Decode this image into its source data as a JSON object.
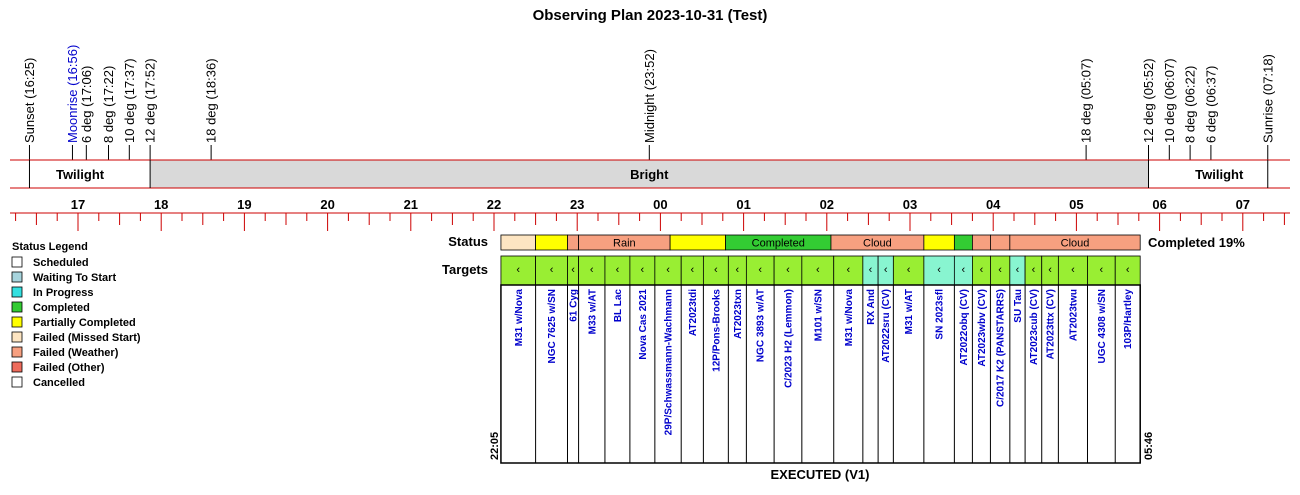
{
  "chart_data": {
    "type": "timeline",
    "title": "Observing Plan 2023-10-31 (Test)",
    "events": [
      {
        "label": "Sunset (16:25)",
        "time": "16:25",
        "color": "#000000"
      },
      {
        "label": "Moonrise (16:56)",
        "time": "16:56",
        "color": "#0000cc"
      },
      {
        "label": "6 deg (17:06)",
        "time": "17:06",
        "color": "#000000"
      },
      {
        "label": "8 deg (17:22)",
        "time": "17:22",
        "color": "#000000"
      },
      {
        "label": "10 deg (17:37)",
        "time": "17:37",
        "color": "#000000"
      },
      {
        "label": "12 deg (17:52)",
        "time": "17:52",
        "color": "#000000"
      },
      {
        "label": "18 deg (18:36)",
        "time": "18:36",
        "color": "#000000"
      },
      {
        "label": "Midnight (23:52)",
        "time": "23:52",
        "color": "#000000"
      },
      {
        "label": "18 deg (05:07)",
        "time": "05:07",
        "color": "#000000"
      },
      {
        "label": "12 deg (05:52)",
        "time": "05:52",
        "color": "#000000"
      },
      {
        "label": "10 deg (06:07)",
        "time": "06:07",
        "color": "#000000"
      },
      {
        "label": "8 deg (06:22)",
        "time": "06:22",
        "color": "#000000"
      },
      {
        "label": "6 deg (06:37)",
        "time": "06:37",
        "color": "#000000"
      },
      {
        "label": "Sunrise (07:18)",
        "time": "07:18",
        "color": "#000000"
      }
    ],
    "bands": [
      {
        "label": "Twilight",
        "start": "16:25",
        "end": "17:52",
        "fill": "#ffffff"
      },
      {
        "label": "Bright",
        "start": "17:52",
        "end": "05:52",
        "fill": "#d9d9d9"
      },
      {
        "label": "Twilight",
        "start": "05:52",
        "end": "07:18",
        "fill": "#ffffff"
      }
    ],
    "hour_labels": [
      "17",
      "18",
      "19",
      "20",
      "21",
      "22",
      "23",
      "00",
      "01",
      "02",
      "03",
      "04",
      "05",
      "06",
      "07"
    ],
    "axis_range": [
      "16:00",
      "07:30"
    ],
    "status_row_label": "Status",
    "status_segments": [
      {
        "start": "22:05",
        "end": "22:30",
        "status": "Failed (Missed Start)",
        "label": ""
      },
      {
        "start": "22:30",
        "end": "22:53",
        "status": "Partially Completed",
        "label": ""
      },
      {
        "start": "22:53",
        "end": "23:01",
        "status": "Failed (Weather)",
        "label": ""
      },
      {
        "start": "23:01",
        "end": "00:07",
        "status": "Failed (Weather)",
        "label": "Rain"
      },
      {
        "start": "00:07",
        "end": "00:47",
        "status": "Partially Completed",
        "label": ""
      },
      {
        "start": "00:47",
        "end": "02:03",
        "status": "Completed",
        "label": "Completed"
      },
      {
        "start": "02:03",
        "end": "03:10",
        "status": "Failed (Weather)",
        "label": "Cloud"
      },
      {
        "start": "03:10",
        "end": "03:32",
        "status": "Partially Completed",
        "label": ""
      },
      {
        "start": "03:32",
        "end": "03:45",
        "status": "Completed",
        "label": ""
      },
      {
        "start": "03:45",
        "end": "03:58",
        "status": "Failed (Weather)",
        "label": ""
      },
      {
        "start": "03:58",
        "end": "04:12",
        "status": "Failed (Weather)",
        "label": ""
      },
      {
        "start": "04:12",
        "end": "05:46",
        "status": "Failed (Weather)",
        "label": "Cloud"
      }
    ],
    "completion_label": "Completed 19%",
    "targets_row_label": "Targets",
    "targets": [
      {
        "name": "M31 w/Nova",
        "start": "22:05",
        "end": "22:30",
        "fill": "#99ee33"
      },
      {
        "name": "NGC 7625 w/SN",
        "start": "22:30",
        "end": "22:53",
        "fill": "#99ee33"
      },
      {
        "name": "61 Cyg",
        "start": "22:53",
        "end": "23:01",
        "fill": "#99ee33"
      },
      {
        "name": "M33 w/AT",
        "start": "23:01",
        "end": "23:20",
        "fill": "#99ee33"
      },
      {
        "name": "BL Lac",
        "start": "23:20",
        "end": "23:38",
        "fill": "#99ee33"
      },
      {
        "name": "Nova Cas 2021",
        "start": "23:38",
        "end": "23:56",
        "fill": "#99ee33"
      },
      {
        "name": "29P/Schwassmann-Wachmann",
        "start": "23:56",
        "end": "00:15",
        "fill": "#99ee33"
      },
      {
        "name": "AT2023tdi",
        "start": "00:15",
        "end": "00:31",
        "fill": "#99ee33"
      },
      {
        "name": "12P/Pons-Brooks",
        "start": "00:31",
        "end": "00:49",
        "fill": "#99ee33"
      },
      {
        "name": "AT2023txn",
        "start": "00:49",
        "end": "01:02",
        "fill": "#99ee33"
      },
      {
        "name": "NGC 3893 w/AT",
        "start": "01:02",
        "end": "01:22",
        "fill": "#99ee33"
      },
      {
        "name": "C/2023 H2 (Lemmon)",
        "start": "01:22",
        "end": "01:42",
        "fill": "#99ee33"
      },
      {
        "name": "M101 w/SN",
        "start": "01:42",
        "end": "02:05",
        "fill": "#99ee33"
      },
      {
        "name": "M31 w/Nova",
        "start": "02:05",
        "end": "02:26",
        "fill": "#99ee33"
      },
      {
        "name": "RX And",
        "start": "02:26",
        "end": "02:37",
        "fill": "#88f5d0"
      },
      {
        "name": "AT2022sru (CV)",
        "start": "02:37",
        "end": "02:48",
        "fill": "#88f5d0"
      },
      {
        "name": "M31 w/AT",
        "start": "02:48",
        "end": "03:10",
        "fill": "#99ee33"
      },
      {
        "name": "SN 2023sfl",
        "start": "03:10",
        "end": "03:32",
        "fill": "#88f5d0"
      },
      {
        "name": "AT2022obq (CV)",
        "start": "03:32",
        "end": "03:45",
        "fill": "#88f5d0"
      },
      {
        "name": "AT2023wbv (CV)",
        "start": "03:45",
        "end": "03:58",
        "fill": "#99ee33"
      },
      {
        "name": "C/2017 K2 (PANSTARRS)",
        "start": "03:58",
        "end": "04:12",
        "fill": "#99ee33"
      },
      {
        "name": "SU Tau",
        "start": "04:12",
        "end": "04:23",
        "fill": "#88f5d0"
      },
      {
        "name": "AT2023cub (CV)",
        "start": "04:23",
        "end": "04:35",
        "fill": "#99ee33"
      },
      {
        "name": "AT2023ttx (CV)",
        "start": "04:35",
        "end": "04:47",
        "fill": "#99ee33"
      },
      {
        "name": "AT2023twu",
        "start": "04:47",
        "end": "05:08",
        "fill": "#99ee33"
      },
      {
        "name": "UGC 4308 w/SN",
        "start": "05:08",
        "end": "05:28",
        "fill": "#99ee33"
      },
      {
        "name": "103P/Hartley",
        "start": "05:28",
        "end": "05:46",
        "fill": "#99ee33"
      }
    ],
    "target_marker": "‹",
    "executed_start": "22:05",
    "executed_end": "05:46",
    "footer": "EXECUTED (V1)",
    "legend": {
      "title": "Status Legend",
      "items": [
        {
          "label": "Scheduled",
          "color": "#ffffff"
        },
        {
          "label": "Waiting To Start",
          "color": "#a7d4dd"
        },
        {
          "label": "In Progress",
          "color": "#33e0e0"
        },
        {
          "label": "Completed",
          "color": "#33cc33"
        },
        {
          "label": "Partially Completed",
          "color": "#ffff00"
        },
        {
          "label": "Failed (Missed Start)",
          "color": "#fde5c2"
        },
        {
          "label": "Failed (Weather)",
          "color": "#f7a080"
        },
        {
          "label": "Failed (Other)",
          "color": "#ee6c5c"
        },
        {
          "label": "Cancelled",
          "color": "#ffffff"
        }
      ]
    },
    "colors": {
      "axis_red": "#cc0000",
      "Completed": "#33cc33",
      "Partially Completed": "#ffff00",
      "Failed (Weather)": "#f7a080",
      "Failed (Missed Start)": "#fde5c2",
      "target_text": "#0000cc"
    }
  }
}
